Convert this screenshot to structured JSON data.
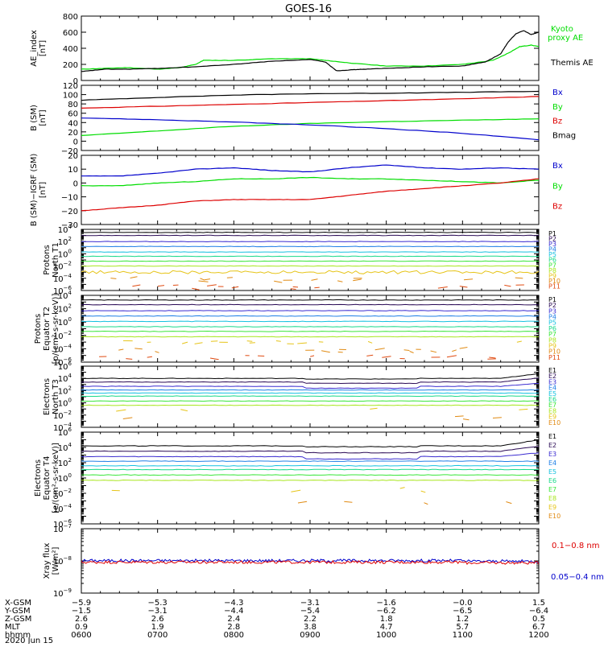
{
  "title": "GOES-16",
  "colors": {
    "black": "#000000",
    "blue": "#0000cc",
    "green": "#00dd00",
    "red": "#dd0000",
    "p": [
      "#000000",
      "#2a0a55",
      "#3a2bd0",
      "#1e7fe6",
      "#16c1e0",
      "#18d98a",
      "#38e63a",
      "#a8e61e",
      "#e6c418",
      "#e08a12",
      "#e04a10",
      "#d01010"
    ],
    "e": [
      "#000000",
      "#2a0a55",
      "#3a2bd0",
      "#1e7fe6",
      "#16c1e0",
      "#18d98a",
      "#38e63a",
      "#a8e61e",
      "#e6c418",
      "#e08a12",
      "#d01010"
    ]
  },
  "footer": {
    "labels": [
      "X-GSM",
      "Y-GSM",
      "Z-GSM",
      "MLT",
      "hhmm"
    ],
    "date": "2020 Jun 15",
    "columns": [
      {
        "x": "-5.9",
        "y": "-1.5",
        "z": "2.6",
        "mlt": "0.9",
        "hhmm": "0600"
      },
      {
        "x": "-5.3",
        "y": "-3.1",
        "z": "2.6",
        "mlt": "1.9",
        "hhmm": "0700"
      },
      {
        "x": "-4.3",
        "y": "-4.4",
        "z": "2.4",
        "mlt": "2.8",
        "hhmm": "0800"
      },
      {
        "x": "-3.1",
        "y": "-5.4",
        "z": "2.2",
        "mlt": "3.8",
        "hhmm": "0900"
      },
      {
        "x": "-1.6",
        "y": "-6.2",
        "z": "1.8",
        "mlt": "4.7",
        "hhmm": "1000"
      },
      {
        "x": "-0.0",
        "y": "-6.5",
        "z": "1.2",
        "mlt": "5.7",
        "hhmm": "1100"
      },
      {
        "x": "1.5",
        "y": "-6.4",
        "z": "0.5",
        "mlt": "6.7",
        "hhmm": "1200"
      }
    ]
  },
  "chart_data": [
    {
      "id": "ae",
      "type": "line",
      "ylabel": [
        "AE_index",
        "[nT]"
      ],
      "yscale": "linear",
      "ylim": [
        0,
        800
      ],
      "yticks": [
        0,
        200,
        400,
        600,
        800
      ],
      "ytick_labels": [
        "0",
        "200",
        "400",
        "600",
        "800"
      ],
      "x_unit": "hours UT",
      "xlim": [
        6,
        12
      ],
      "legend": [
        {
          "label": "Kyoto",
          "color": "green"
        },
        {
          "label": "proxy AE",
          "color": "green"
        },
        {
          "label": "Themis AE",
          "color": "black"
        }
      ],
      "series": [
        {
          "color": "green",
          "x": [
            6.0,
            6.3,
            6.6,
            7.0,
            7.3,
            7.5,
            7.6,
            8.0,
            8.5,
            9.0,
            9.3,
            9.6,
            10.0,
            10.5,
            11.0,
            11.4,
            11.6,
            11.75,
            11.9,
            12.0
          ],
          "y": [
            140,
            150,
            160,
            140,
            160,
            200,
            250,
            250,
            270,
            270,
            240,
            210,
            180,
            180,
            200,
            250,
            340,
            420,
            440,
            420
          ]
        },
        {
          "color": "black",
          "x": [
            6.0,
            6.3,
            6.6,
            7.0,
            7.5,
            8.0,
            8.5,
            9.0,
            9.2,
            9.35,
            9.5,
            9.7,
            10.0,
            10.5,
            11.0,
            11.3,
            11.5,
            11.6,
            11.7,
            11.8,
            11.9,
            12.0
          ],
          "y": [
            110,
            140,
            140,
            150,
            170,
            200,
            240,
            260,
            230,
            120,
            130,
            140,
            150,
            170,
            180,
            230,
            330,
            480,
            580,
            620,
            570,
            600
          ]
        }
      ]
    },
    {
      "id": "bsm",
      "type": "line",
      "ylabel": [
        "B (SM)",
        "[nT]"
      ],
      "yscale": "linear",
      "ylim": [
        -20,
        120
      ],
      "yticks": [
        -20,
        0,
        20,
        40,
        60,
        80,
        100,
        120
      ],
      "ytick_labels": [
        "−20",
        "0",
        "20",
        "40",
        "60",
        "80",
        "100",
        "120"
      ],
      "x_unit": "hours UT",
      "xlim": [
        6,
        12
      ],
      "legend": [
        {
          "label": "Bx",
          "color": "blue"
        },
        {
          "label": "By",
          "color": "green"
        },
        {
          "label": "Bz",
          "color": "red"
        },
        {
          "label": "Bmag",
          "color": "black"
        }
      ],
      "series": [
        {
          "color": "black",
          "x": [
            6,
            7,
            8,
            9,
            10,
            11,
            12
          ],
          "y": [
            88,
            94,
            99,
            102,
            103,
            105,
            107
          ]
        },
        {
          "color": "red",
          "x": [
            6,
            7,
            8,
            9,
            10,
            11,
            12
          ],
          "y": [
            71,
            75,
            79,
            83,
            87,
            91,
            96
          ]
        },
        {
          "color": "green",
          "x": [
            6,
            7,
            8,
            9,
            10,
            11,
            12
          ],
          "y": [
            12,
            22,
            32,
            38,
            42,
            45,
            48
          ]
        },
        {
          "color": "blue",
          "x": [
            6,
            7,
            8,
            9,
            10,
            11,
            12
          ],
          "y": [
            50,
            46,
            41,
            35,
            27,
            17,
            3
          ]
        }
      ]
    },
    {
      "id": "bigrf",
      "type": "line",
      "ylabel": [
        "B (SM)−IGRF (SM)",
        "[nT]"
      ],
      "yscale": "linear",
      "ylim": [
        -30,
        20
      ],
      "yticks": [
        -30,
        -20,
        -10,
        0,
        10,
        20
      ],
      "ytick_labels": [
        "−30",
        "−20",
        "−10",
        "0",
        "10",
        "20"
      ],
      "x_unit": "hours UT",
      "xlim": [
        6,
        12
      ],
      "legend": [
        {
          "label": "Bx",
          "color": "blue"
        },
        {
          "label": "By",
          "color": "green"
        },
        {
          "label": "Bz",
          "color": "red"
        }
      ],
      "series": [
        {
          "color": "blue",
          "x": [
            6,
            6.5,
            7,
            7.5,
            8,
            8.5,
            9,
            9.5,
            10,
            10.5,
            11,
            11.5,
            12
          ],
          "y": [
            5,
            5,
            7,
            10,
            11,
            9,
            8,
            11,
            13,
            11,
            10,
            11,
            10
          ]
        },
        {
          "color": "green",
          "x": [
            6,
            6.5,
            7,
            7.5,
            8,
            8.5,
            9,
            9.5,
            10,
            10.5,
            11,
            11.5,
            12
          ],
          "y": [
            -2,
            -2,
            0,
            1,
            3,
            3,
            4,
            3,
            3,
            2,
            1,
            0,
            2
          ]
        },
        {
          "color": "red",
          "x": [
            6,
            6.5,
            7,
            7.5,
            8,
            8.5,
            9,
            9.5,
            10,
            10.5,
            11,
            11.5,
            12
          ],
          "y": [
            -20,
            -18,
            -16,
            -13,
            -12,
            -12,
            -12,
            -9,
            -6,
            -4,
            -2,
            0,
            3
          ]
        }
      ]
    },
    {
      "id": "pt1",
      "type": "line",
      "ylabel": [
        "Protons",
        "North T1"
      ],
      "yscale": "log",
      "ylim_exp": [
        -6,
        4
      ],
      "yticks_exp": [
        -6,
        -4,
        -2,
        0,
        2,
        4
      ],
      "x_unit": "hours UT",
      "xlim": [
        6,
        12
      ],
      "legend": [
        "P1",
        "P2",
        "P3",
        "P4",
        "P5",
        "P6",
        "P7",
        "P8",
        "P9",
        "P10",
        "P11"
      ],
      "levels_exp": [
        3.5,
        3.0,
        2.0,
        1.2,
        0.3,
        -0.4,
        -1.2,
        -2.0,
        -3.0,
        -4.2,
        -5.4
      ],
      "dashed_from": 9
    },
    {
      "id": "pt2",
      "type": "line",
      "ylabel": [
        "Protons",
        "Equator T2",
        "[p/(cm²-s-sr-keV)]"
      ],
      "yscale": "log",
      "ylim_exp": [
        -6,
        4
      ],
      "yticks_exp": [
        -6,
        -4,
        -2,
        0,
        2,
        4
      ],
      "x_unit": "hours UT",
      "xlim": [
        6,
        12
      ],
      "legend": [
        "P1",
        "P2",
        "P3",
        "P4",
        "P5",
        "P6",
        "P7",
        "P8",
        "P9",
        "P10",
        "P11"
      ],
      "levels_exp": [
        3.3,
        2.6,
        1.7,
        0.9,
        0.1,
        -0.7,
        -1.4,
        -2.2,
        -3.0,
        -4.2,
        -5.3
      ],
      "dashed_from": 8
    },
    {
      "id": "et3",
      "type": "line",
      "ylabel": [
        "Electrons",
        "North T3"
      ],
      "yscale": "log",
      "ylim_exp": [
        -4,
        6
      ],
      "yticks_exp": [
        -4,
        -2,
        0,
        2,
        4,
        6
      ],
      "x_unit": "hours UT",
      "xlim": [
        6,
        12
      ],
      "legend": [
        "E1",
        "E2",
        "E3",
        "E4",
        "E5",
        "E6",
        "E7",
        "E8",
        "E9",
        "E10"
      ],
      "levels_exp": [
        4.0,
        3.4,
        2.7,
        2.1,
        1.6,
        1.1,
        0.3,
        -0.4,
        -1.3,
        -2.5
      ],
      "fragments_from": 8
    },
    {
      "id": "et4",
      "type": "line",
      "ylabel": [
        "Electrons",
        "Equator T4",
        "[e/(cm²-s-sr-keV)]"
      ],
      "yscale": "log",
      "ylim_exp": [
        -6,
        6
      ],
      "yticks_exp": [
        -6,
        -4,
        -2,
        0,
        2,
        4,
        6
      ],
      "x_unit": "hours UT",
      "xlim": [
        6,
        12
      ],
      "legend": [
        "E1",
        "E2",
        "E3",
        "E4",
        "E5",
        "E6",
        "E7",
        "E8",
        "E9",
        "E10"
      ],
      "levels_exp": [
        4.2,
        3.5,
        2.8,
        2.2,
        1.6,
        1.1,
        0.4,
        -0.3,
        -1.6,
        -3.0
      ],
      "fragments_from": 8
    },
    {
      "id": "xray",
      "type": "line",
      "ylabel": [
        "Xray flux",
        "[W/m²]"
      ],
      "yscale": "log",
      "ylim_exp": [
        -9,
        -7
      ],
      "yticks_exp": [
        -9,
        -8,
        -7
      ],
      "x_unit": "hours UT",
      "xlim": [
        6,
        12
      ],
      "legend": [
        {
          "label": "0.1−0.8 nm",
          "color": "red"
        },
        {
          "label": "0.05−0.4 nm",
          "color": "blue"
        }
      ],
      "series": [
        {
          "color": "blue",
          "level_exp": -7.99
        },
        {
          "color": "red",
          "level_exp": -8.04
        }
      ]
    }
  ]
}
